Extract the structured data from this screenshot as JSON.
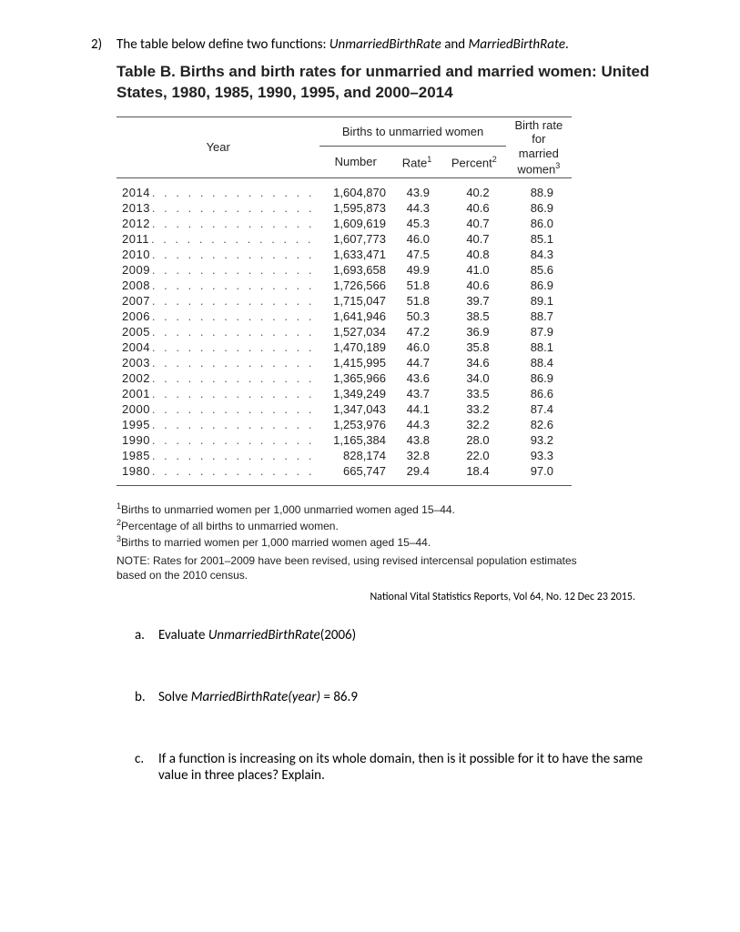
{
  "question": {
    "number": "2)",
    "intro_pre": "The table below define two functions: ",
    "fn1": "UnmarriedBirthRate",
    "intro_mid": " and ",
    "fn2": "MarriedBirthRate",
    "intro_post": "."
  },
  "table": {
    "title": "Table B. Births and birth rates for unmarried and married women: United States, 1980, 1985, 1990, 1995, and 2000–2014",
    "group_header": "Births to unmarried women",
    "married_header_l1": "Birth rate",
    "married_header_l2": "for married",
    "married_header_l3": "women",
    "married_sup": "3",
    "col_year": "Year",
    "col_number": "Number",
    "col_rate": "Rate",
    "rate_sup": "1",
    "col_percent": "Percent",
    "percent_sup": "2",
    "rows": [
      {
        "year": "2014",
        "number": "1,604,870",
        "rate": "43.9",
        "percent": "40.2",
        "married": "88.9"
      },
      {
        "year": "2013",
        "number": "1,595,873",
        "rate": "44.3",
        "percent": "40.6",
        "married": "86.9"
      },
      {
        "year": "2012",
        "number": "1,609,619",
        "rate": "45.3",
        "percent": "40.7",
        "married": "86.0"
      },
      {
        "year": "2011",
        "number": "1,607,773",
        "rate": "46.0",
        "percent": "40.7",
        "married": "85.1"
      },
      {
        "year": "2010",
        "number": "1,633,471",
        "rate": "47.5",
        "percent": "40.8",
        "married": "84.3"
      },
      {
        "year": "2009",
        "number": "1,693,658",
        "rate": "49.9",
        "percent": "41.0",
        "married": "85.6"
      },
      {
        "year": "2008",
        "number": "1,726,566",
        "rate": "51.8",
        "percent": "40.6",
        "married": "86.9"
      },
      {
        "year": "2007",
        "number": "1,715,047",
        "rate": "51.8",
        "percent": "39.7",
        "married": "89.1"
      },
      {
        "year": "2006",
        "number": "1,641,946",
        "rate": "50.3",
        "percent": "38.5",
        "married": "88.7"
      },
      {
        "year": "2005",
        "number": "1,527,034",
        "rate": "47.2",
        "percent": "36.9",
        "married": "87.9"
      },
      {
        "year": "2004",
        "number": "1,470,189",
        "rate": "46.0",
        "percent": "35.8",
        "married": "88.1"
      },
      {
        "year": "2003",
        "number": "1,415,995",
        "rate": "44.7",
        "percent": "34.6",
        "married": "88.4"
      },
      {
        "year": "2002",
        "number": "1,365,966",
        "rate": "43.6",
        "percent": "34.0",
        "married": "86.9"
      },
      {
        "year": "2001",
        "number": "1,349,249",
        "rate": "43.7",
        "percent": "33.5",
        "married": "86.6"
      },
      {
        "year": "2000",
        "number": "1,347,043",
        "rate": "44.1",
        "percent": "33.2",
        "married": "87.4"
      },
      {
        "year": "1995",
        "number": "1,253,976",
        "rate": "44.3",
        "percent": "32.2",
        "married": "82.6"
      },
      {
        "year": "1990",
        "number": "1,165,384",
        "rate": "43.8",
        "percent": "28.0",
        "married": "93.2"
      },
      {
        "year": "1985",
        "number": "828,174",
        "rate": "32.8",
        "percent": "22.0",
        "married": "93.3"
      },
      {
        "year": "1980",
        "number": "665,747",
        "rate": "29.4",
        "percent": "18.4",
        "married": "97.0"
      }
    ]
  },
  "footnotes": {
    "f1_sup": "1",
    "f1": "Births to unmarried women per 1,000 unmarried women aged 15–44.",
    "f2_sup": "2",
    "f2": "Percentage of all births to unmarried women.",
    "f3_sup": "3",
    "f3": "Births to married women per 1,000 married women aged 15–44.",
    "note": "NOTE: Rates for 2001–2009 have been revised, using revised intercensal population estimates based on the 2010 census."
  },
  "source": "National Vital Statistics Reports, Vol 64, No. 12 Dec 23 2015.",
  "subq": {
    "a_letter": "a.",
    "a_pre": "Evaluate  ",
    "a_fn": "UnmarriedBirthRate",
    "a_arg": "(2006)",
    "b_letter": "b.",
    "b_pre": "Solve   ",
    "b_fn": "MarriedBirthRate",
    "b_arg": "(year)",
    "b_eq": " = 86.9",
    "c_letter": "c.",
    "c_text": "If a function is increasing on its whole domain, then is it possible for it to have the same value in three places?  Explain."
  },
  "leaders": ". . . . . . . . . . . . . ."
}
